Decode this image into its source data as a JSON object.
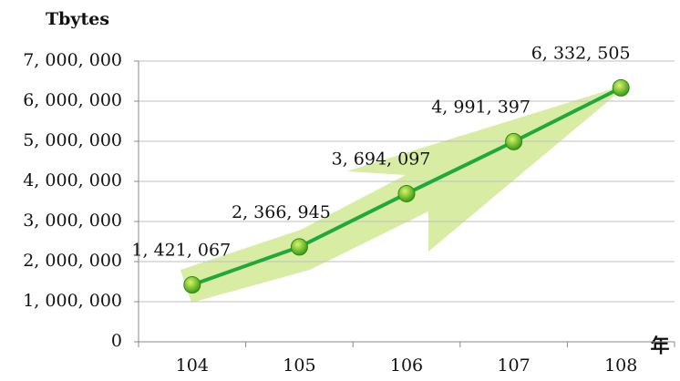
{
  "chart_data": {
    "type": "line",
    "y_label": "Tbytes",
    "x_label": "年",
    "categories": [
      "104",
      "105",
      "106",
      "107",
      "108"
    ],
    "values": [
      1421067,
      2366945,
      3694097,
      4991397,
      6332505
    ],
    "value_labels": [
      "1, 421, 067",
      "2, 366, 945",
      "3, 694, 097",
      "4, 991, 397",
      "6, 332, 505"
    ],
    "color": "#1fa83c",
    "ylim": [
      0,
      7000000
    ],
    "yticks": [
      0,
      {
        "value": 1000000,
        "label": "1, 000, 000"
      },
      {
        "value": 2000000,
        "label": "2, 000, 000"
      },
      {
        "value": 3000000,
        "label": "3, 000, 000"
      },
      {
        "value": 4000000,
        "label": "4, 000, 000"
      },
      {
        "value": 5000000,
        "label": "5, 000, 000"
      },
      {
        "value": 6000000,
        "label": "6, 000, 000"
      },
      {
        "value": 7000000,
        "label": "7, 000, 000"
      }
    ],
    "grid": true
  }
}
